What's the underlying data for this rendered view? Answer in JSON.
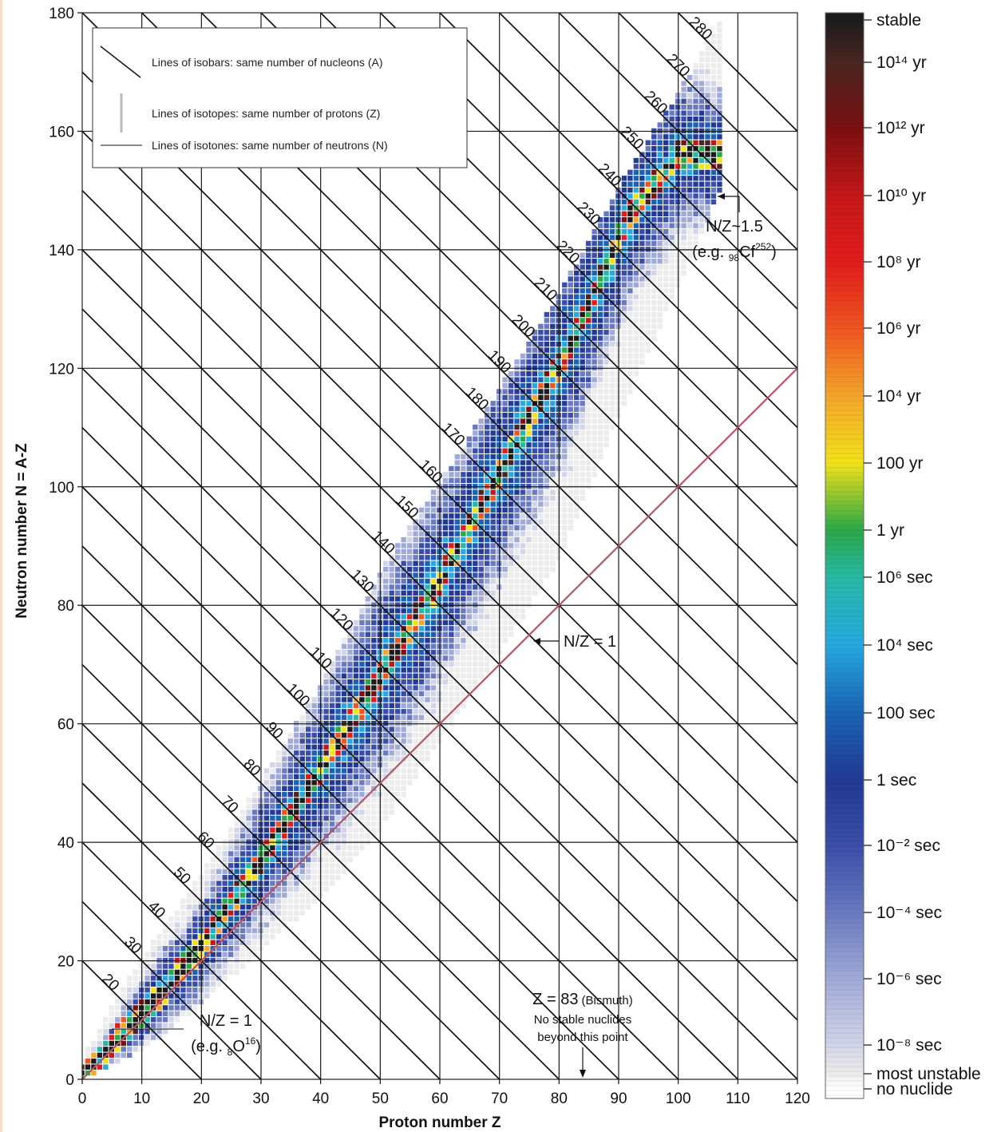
{
  "chart_data": {
    "type": "heatmap",
    "xlabel": "Proton number Z",
    "ylabel": "Neutron number N = A-Z",
    "xlim": [
      0,
      120
    ],
    "ylim": [
      0,
      180
    ],
    "x_ticks": [
      "0",
      "10",
      "20",
      "30",
      "40",
      "50",
      "60",
      "70",
      "80",
      "90",
      "100",
      "110",
      "120"
    ],
    "y_ticks": [
      "0",
      "20",
      "40",
      "60",
      "80",
      "100",
      "120",
      "140",
      "160",
      "180"
    ],
    "grid": "vertical lines every 10 in Z, horizontal lines every 20 in N",
    "isobar_lines": {
      "A_values": [
        20,
        30,
        40,
        50,
        60,
        70,
        80,
        90,
        100,
        110,
        120,
        130,
        140,
        150,
        160,
        170,
        180,
        190,
        200,
        210,
        220,
        230,
        240,
        250,
        260,
        270,
        280
      ],
      "labels": [
        "20",
        "30",
        "40",
        "50",
        "60",
        "70",
        "80",
        "90",
        "100",
        "110",
        "120",
        "130",
        "140",
        "150",
        "160",
        "170",
        "180",
        "190",
        "200",
        "210",
        "220",
        "230",
        "240",
        "250",
        "260",
        "270",
        "280"
      ]
    },
    "nz1_line": {
      "from": [
        0,
        0
      ],
      "to": [
        120,
        120
      ],
      "color": "#b85560"
    },
    "band": {
      "description_points": [
        {
          "Z": 0,
          "N_min": 0,
          "N_max": 3
        },
        {
          "Z": 10,
          "N_min": 5,
          "N_max": 20
        },
        {
          "Z": 20,
          "N_min": 13,
          "N_max": 34
        },
        {
          "Z": 30,
          "N_min": 22,
          "N_max": 50
        },
        {
          "Z": 40,
          "N_min": 31,
          "N_max": 66
        },
        {
          "Z": 50,
          "N_min": 42,
          "N_max": 85
        },
        {
          "Z": 60,
          "N_min": 57,
          "N_max": 100
        },
        {
          "Z": 70,
          "N_min": 72,
          "N_max": 116
        },
        {
          "Z": 80,
          "N_min": 88,
          "N_max": 132
        },
        {
          "Z": 90,
          "N_min": 112,
          "N_max": 150
        },
        {
          "Z": 100,
          "N_min": 134,
          "N_max": 166
        },
        {
          "Z": 107,
          "N_min": 150,
          "N_max": 178
        }
      ],
      "stability_valley": [
        {
          "Z": 0,
          "N": 0
        },
        {
          "Z": 20,
          "N": 22
        },
        {
          "Z": 40,
          "N": 52
        },
        {
          "Z": 50,
          "N": 68
        },
        {
          "Z": 60,
          "N": 84
        },
        {
          "Z": 70,
          "N": 102
        },
        {
          "Z": 83,
          "N": 126
        },
        {
          "Z": 92,
          "N": 146
        },
        {
          "Z": 100,
          "N": 156
        }
      ]
    },
    "colorbar": {
      "labels": [
        {
          "text": "stable",
          "color": "#1c1c1c"
        },
        {
          "text": "10¹⁴ yr",
          "color": "#4a2622"
        },
        {
          "text": "10¹² yr",
          "color": "#7a1010"
        },
        {
          "text": "10¹⁰ yr",
          "color": "#c41818"
        },
        {
          "text": "10⁸ yr",
          "color": "#e21c1c"
        },
        {
          "text": "10⁶ yr",
          "color": "#ee5520"
        },
        {
          "text": "10⁴ yr",
          "color": "#f4a52a"
        },
        {
          "text": "100 yr",
          "color": "#f2e21a"
        },
        {
          "text": "1 yr",
          "color": "#2aa848"
        },
        {
          "text": "10⁶ sec",
          "color": "#27b9a6"
        },
        {
          "text": "10⁴ sec",
          "color": "#26a9e1"
        },
        {
          "text": "100 sec",
          "color": "#1a63b4"
        },
        {
          "text": "1 sec",
          "color": "#223a94"
        },
        {
          "text": "10⁻² sec",
          "color": "#3a4ea8"
        },
        {
          "text": "10⁻⁴ sec",
          "color": "#6a7ac0"
        },
        {
          "text": "10⁻⁶ sec",
          "color": "#a0aad8"
        },
        {
          "text": "10⁻⁸ sec",
          "color": "#d2d5e8"
        },
        {
          "text": "most unstable",
          "color": "#ececec"
        },
        {
          "text": "no nuclide",
          "color": "#ffffff"
        }
      ]
    },
    "legend": {
      "placement": "top-left",
      "entries": [
        {
          "style": "diagonal",
          "text": "Lines of isobars: same number of nucleons (A)"
        },
        {
          "style": "vertical",
          "text": "Lines of isotopes: same number of protons (Z)"
        },
        {
          "style": "horizontal",
          "text": "Lines of isotones: same number of neutrons (N)"
        }
      ]
    },
    "annotations": {
      "nz15_line1": "N/Z~1.5",
      "nz15_line2_pre": "(e.g. ",
      "nz15_sub": "98",
      "nz15_el": "Cf",
      "nz15_sup": "252",
      "nz15_post": ")",
      "nz1_mid": "N/Z = 1",
      "nz1_low_line1": "N/Z = 1",
      "nz1_low_pre": "(e.g. ",
      "nz1_low_sub": "8",
      "nz1_low_el": "O",
      "nz1_low_sup": "16",
      "nz1_low_post": ")",
      "bismuth_main": "Z = 83",
      "bismuth_paren": "(Bismuth)",
      "bismuth_line2": "No stable nuclides",
      "bismuth_line3": "beyond this point"
    }
  }
}
